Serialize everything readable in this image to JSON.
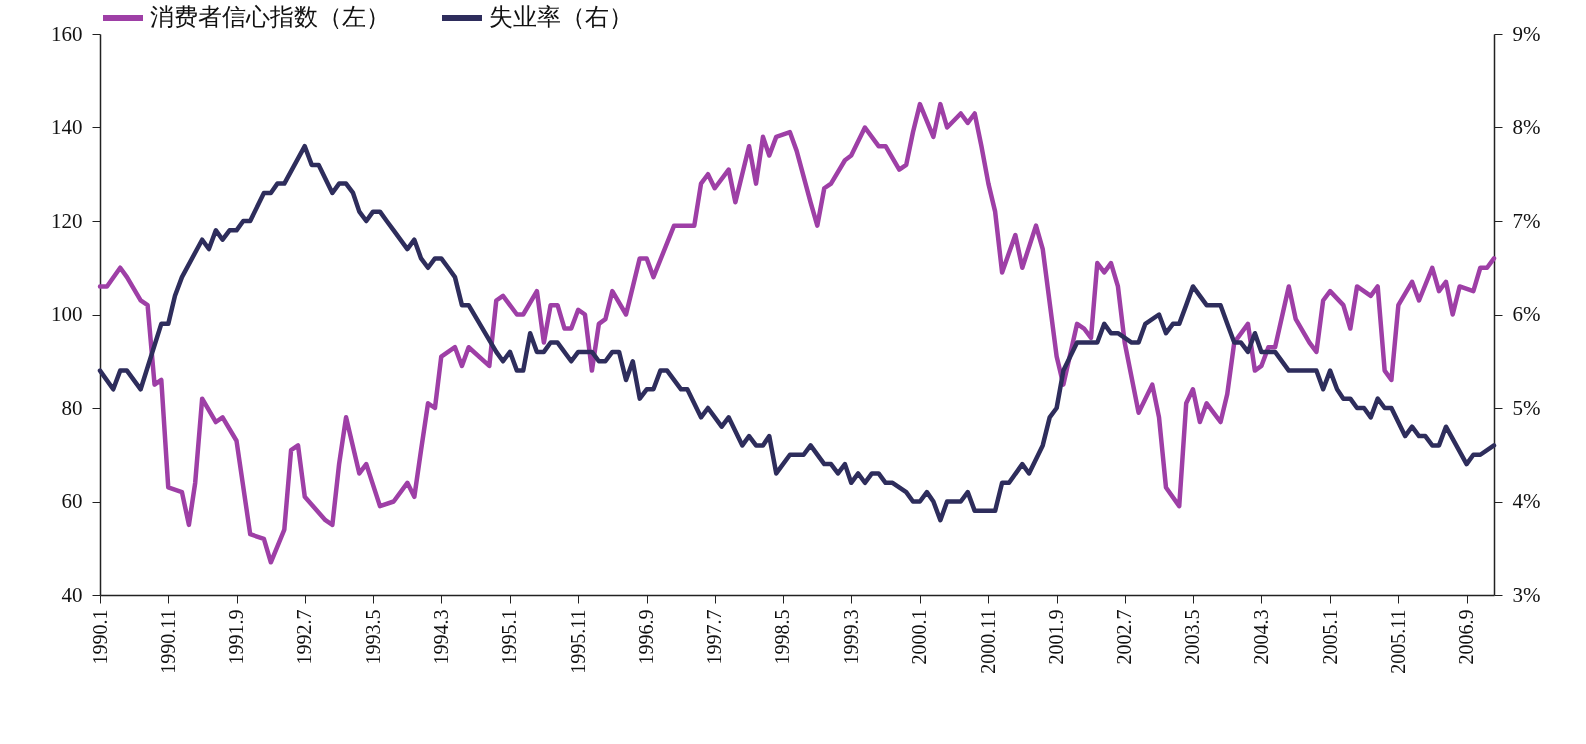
{
  "chart_data": {
    "type": "line",
    "legend": "top",
    "xlim": [
      "1990-01",
      "2007-01"
    ],
    "xticks": [
      {
        "value": "1990-01",
        "label": "1990.1"
      },
      {
        "value": "1990-11",
        "label": "1990.11"
      },
      {
        "value": "1991-09",
        "label": "1991.9"
      },
      {
        "value": "1992-07",
        "label": "1992.7"
      },
      {
        "value": "1993-05",
        "label": "1993.5"
      },
      {
        "value": "1994-03",
        "label": "1994.3"
      },
      {
        "value": "1995-01",
        "label": "1995.1"
      },
      {
        "value": "1995-11",
        "label": "1995.11"
      },
      {
        "value": "1996-09",
        "label": "1996.9"
      },
      {
        "value": "1997-07",
        "label": "1997.7"
      },
      {
        "value": "1998-05",
        "label": "1998.5"
      },
      {
        "value": "1999-03",
        "label": "1999.3"
      },
      {
        "value": "2000-01",
        "label": "2000.1"
      },
      {
        "value": "2000-11",
        "label": "2000.11"
      },
      {
        "value": "2001-09",
        "label": "2001.9"
      },
      {
        "value": "2002-07",
        "label": "2002.7"
      },
      {
        "value": "2003-05",
        "label": "2003.5"
      },
      {
        "value": "2004-03",
        "label": "2004.3"
      },
      {
        "value": "2005-01",
        "label": "2005.1"
      },
      {
        "value": "2005-11",
        "label": "2005.11"
      },
      {
        "value": "2006-09",
        "label": "2006.9"
      }
    ],
    "ylim": [
      40,
      160
    ],
    "yticks": [
      40,
      60,
      80,
      100,
      120,
      140,
      160
    ],
    "y2lim": [
      3,
      9
    ],
    "y2ticks": [
      {
        "value": 3,
        "label": "3%"
      },
      {
        "value": 4,
        "label": "4%"
      },
      {
        "value": 5,
        "label": "5%"
      },
      {
        "value": 6,
        "label": "6%"
      },
      {
        "value": 7,
        "label": "7%"
      },
      {
        "value": 8,
        "label": "8%"
      },
      {
        "value": 9,
        "label": "9%"
      }
    ],
    "series": [
      {
        "name": "消费者信心指数（左）",
        "color": "#9e3fa6",
        "x": [
          "1990-01",
          "1990-02",
          "1990-04",
          "1990-05",
          "1990-07",
          "1990-08",
          "1990-09",
          "1990-10",
          "1990-11",
          "1991-01",
          "1991-02",
          "1991-03",
          "1991-04",
          "1991-06",
          "1991-07",
          "1991-09",
          "1991-11",
          "1992-01",
          "1992-02",
          "1992-04",
          "1992-05",
          "1992-06",
          "1992-07",
          "1992-10",
          "1992-11",
          "1992-12",
          "1993-01",
          "1993-03",
          "1993-04",
          "1993-06",
          "1993-08",
          "1993-10",
          "1993-11",
          "1993-12",
          "1994-01",
          "1994-02",
          "1994-03",
          "1994-05",
          "1994-06",
          "1994-07",
          "1994-10",
          "1994-11",
          "1994-12",
          "1995-02",
          "1995-03",
          "1995-05",
          "1995-06",
          "1995-07",
          "1995-08",
          "1995-09",
          "1995-10",
          "1995-11",
          "1995-12",
          "1996-01",
          "1996-02",
          "1996-03",
          "1996-04",
          "1996-06",
          "1996-08",
          "1996-09",
          "1996-10",
          "1997-01",
          "1997-04",
          "1997-05",
          "1997-06",
          "1997-07",
          "1997-09",
          "1997-10",
          "1997-12",
          "1998-01",
          "1998-02",
          "1998-03",
          "1998-04",
          "1998-06",
          "1998-07",
          "1998-09",
          "1998-10",
          "1998-11",
          "1998-12",
          "1999-02",
          "1999-03",
          "1999-05",
          "1999-07",
          "1999-08",
          "1999-10",
          "1999-11",
          "1999-12",
          "2000-01",
          "2000-03",
          "2000-04",
          "2000-05",
          "2000-07",
          "2000-08",
          "2000-09",
          "2000-10",
          "2000-11",
          "2000-12",
          "2001-01",
          "2001-03",
          "2001-04",
          "2001-06",
          "2001-07",
          "2001-09",
          "2001-10",
          "2001-12",
          "2002-01",
          "2002-02",
          "2002-03",
          "2002-04",
          "2002-05",
          "2002-06",
          "2002-07",
          "2002-09",
          "2002-11",
          "2002-12",
          "2003-01",
          "2003-03",
          "2003-04",
          "2003-05",
          "2003-06",
          "2003-07",
          "2003-09",
          "2003-10",
          "2003-11",
          "2004-01",
          "2004-02",
          "2004-03",
          "2004-04",
          "2004-05",
          "2004-07",
          "2004-08",
          "2004-10",
          "2004-11",
          "2004-12",
          "2005-01",
          "2005-03",
          "2005-04",
          "2005-05",
          "2005-07",
          "2005-08",
          "2005-09",
          "2005-10",
          "2005-11",
          "2006-01",
          "2006-02",
          "2006-04",
          "2006-05",
          "2006-06",
          "2006-07",
          "2006-08",
          "2006-10",
          "2006-11",
          "2006-12",
          "2007-01"
        ],
        "values": [
          106,
          106,
          110,
          108,
          103,
          102,
          85,
          86,
          63,
          62,
          55,
          64,
          82,
          77,
          78,
          73,
          53,
          52,
          47,
          54,
          71,
          72,
          61,
          56,
          55,
          68,
          78,
          66,
          68,
          59,
          60,
          64,
          61,
          71,
          81,
          80,
          91,
          93,
          89,
          93,
          89,
          103,
          104,
          100,
          100,
          105,
          94,
          102,
          102,
          97,
          97,
          101,
          100,
          88,
          98,
          99,
          105,
          100,
          112,
          112,
          108,
          119,
          119,
          128,
          130,
          127,
          131,
          124,
          136,
          128,
          138,
          134,
          138,
          139,
          135,
          124,
          119,
          127,
          128,
          133,
          134,
          140,
          136,
          136,
          131,
          132,
          139,
          145,
          138,
          145,
          140,
          143,
          141,
          143,
          136,
          128,
          122,
          109,
          117,
          110,
          119,
          114,
          91,
          85,
          98,
          97,
          95,
          111,
          109,
          111,
          106,
          94,
          79,
          85,
          78,
          63,
          59,
          81,
          84,
          77,
          81,
          77,
          83,
          94,
          98,
          88,
          89,
          93,
          93,
          106,
          99,
          94,
          92,
          103,
          105,
          102,
          97,
          106,
          104,
          106,
          88,
          86,
          102,
          107,
          103,
          110,
          105,
          107,
          100,
          106,
          105,
          110,
          110,
          112
        ]
      },
      {
        "name": "失业率（右）",
        "color": "#2e2d5c",
        "axis": "y2",
        "x": [
          "1990-01",
          "1990-03",
          "1990-04",
          "1990-05",
          "1990-07",
          "1990-10",
          "1990-11",
          "1990-12",
          "1991-01",
          "1991-04",
          "1991-05",
          "1991-06",
          "1991-07",
          "1991-08",
          "1991-09",
          "1991-10",
          "1991-11",
          "1992-01",
          "1992-02",
          "1992-03",
          "1992-04",
          "1992-07",
          "1992-08",
          "1992-09",
          "1992-11",
          "1992-12",
          "1993-01",
          "1993-02",
          "1993-03",
          "1993-04",
          "1993-05",
          "1993-06",
          "1993-07",
          "1993-08",
          "1993-10",
          "1993-11",
          "1993-12",
          "1994-01",
          "1994-02",
          "1994-03",
          "1994-04",
          "1994-05",
          "1994-06",
          "1994-07",
          "1994-11",
          "1994-12",
          "1995-01",
          "1995-02",
          "1995-03",
          "1995-04",
          "1995-05",
          "1995-06",
          "1995-07",
          "1995-08",
          "1995-10",
          "1995-11",
          "1996-01",
          "1996-02",
          "1996-03",
          "1996-04",
          "1996-05",
          "1996-06",
          "1996-07",
          "1996-08",
          "1996-09",
          "1996-10",
          "1996-11",
          "1996-12",
          "1997-02",
          "1997-03",
          "1997-05",
          "1997-06",
          "1997-08",
          "1997-09",
          "1997-11",
          "1997-12",
          "1998-01",
          "1998-02",
          "1998-03",
          "1998-04",
          "1998-06",
          "1998-07",
          "1998-08",
          "1998-09",
          "1998-11",
          "1998-12",
          "1999-01",
          "1999-02",
          "1999-03",
          "1999-04",
          "1999-05",
          "1999-06",
          "1999-07",
          "1999-08",
          "1999-09",
          "1999-11",
          "1999-12",
          "2000-01",
          "2000-02",
          "2000-03",
          "2000-04",
          "2000-05",
          "2000-07",
          "2000-08",
          "2000-09",
          "2000-12",
          "2001-01",
          "2001-02",
          "2001-04",
          "2001-05",
          "2001-07",
          "2001-08",
          "2001-09",
          "2001-10",
          "2001-12",
          "2002-03",
          "2002-04",
          "2002-05",
          "2002-06",
          "2002-08",
          "2002-09",
          "2002-10",
          "2002-12",
          "2003-01",
          "2003-02",
          "2003-03",
          "2003-04",
          "2003-05",
          "2003-07",
          "2003-09",
          "2003-10",
          "2003-11",
          "2003-12",
          "2004-01",
          "2004-02",
          "2004-03",
          "2004-05",
          "2004-07",
          "2004-11",
          "2004-12",
          "2005-01",
          "2005-02",
          "2005-03",
          "2005-04",
          "2005-05",
          "2005-06",
          "2005-07",
          "2005-08",
          "2005-09",
          "2005-10",
          "2005-12",
          "2006-01",
          "2006-02",
          "2006-03",
          "2006-04",
          "2006-05",
          "2006-06",
          "2006-09",
          "2006-10",
          "2006-11",
          "2007-01"
        ],
        "values": [
          5.4,
          5.2,
          5.4,
          5.4,
          5.2,
          5.9,
          5.9,
          6.2,
          6.4,
          6.8,
          6.7,
          6.9,
          6.8,
          6.9,
          6.9,
          7.0,
          7.0,
          7.3,
          7.3,
          7.4,
          7.4,
          7.8,
          7.6,
          7.6,
          7.3,
          7.4,
          7.4,
          7.3,
          7.1,
          7.0,
          7.1,
          7.1,
          7.0,
          6.9,
          6.7,
          6.8,
          6.6,
          6.5,
          6.6,
          6.6,
          6.5,
          6.4,
          6.1,
          6.1,
          5.6,
          5.5,
          5.6,
          5.4,
          5.4,
          5.8,
          5.6,
          5.6,
          5.7,
          5.7,
          5.5,
          5.6,
          5.6,
          5.5,
          5.5,
          5.6,
          5.6,
          5.3,
          5.5,
          5.1,
          5.2,
          5.2,
          5.4,
          5.4,
          5.2,
          5.2,
          4.9,
          5.0,
          4.8,
          4.9,
          4.6,
          4.7,
          4.6,
          4.6,
          4.7,
          4.3,
          4.5,
          4.5,
          4.5,
          4.6,
          4.4,
          4.4,
          4.3,
          4.4,
          4.2,
          4.3,
          4.2,
          4.3,
          4.3,
          4.2,
          4.2,
          4.1,
          4.0,
          4.0,
          4.1,
          4.0,
          3.8,
          4.0,
          4.0,
          4.1,
          3.9,
          3.9,
          4.2,
          4.2,
          4.4,
          4.3,
          4.6,
          4.9,
          5.0,
          5.4,
          5.7,
          5.7,
          5.9,
          5.8,
          5.8,
          5.7,
          5.7,
          5.9,
          6.0,
          5.8,
          5.9,
          5.9,
          6.1,
          6.3,
          6.1,
          6.1,
          5.9,
          5.7,
          5.7,
          5.6,
          5.8,
          5.6,
          5.6,
          5.4,
          5.4,
          5.2,
          5.4,
          5.2,
          5.1,
          5.1,
          5.0,
          5.0,
          4.9,
          5.1,
          5.0,
          5.0,
          4.7,
          4.8,
          4.7,
          4.7,
          4.6,
          4.6,
          4.8,
          4.4,
          4.5,
          4.5,
          4.6
        ]
      }
    ]
  }
}
